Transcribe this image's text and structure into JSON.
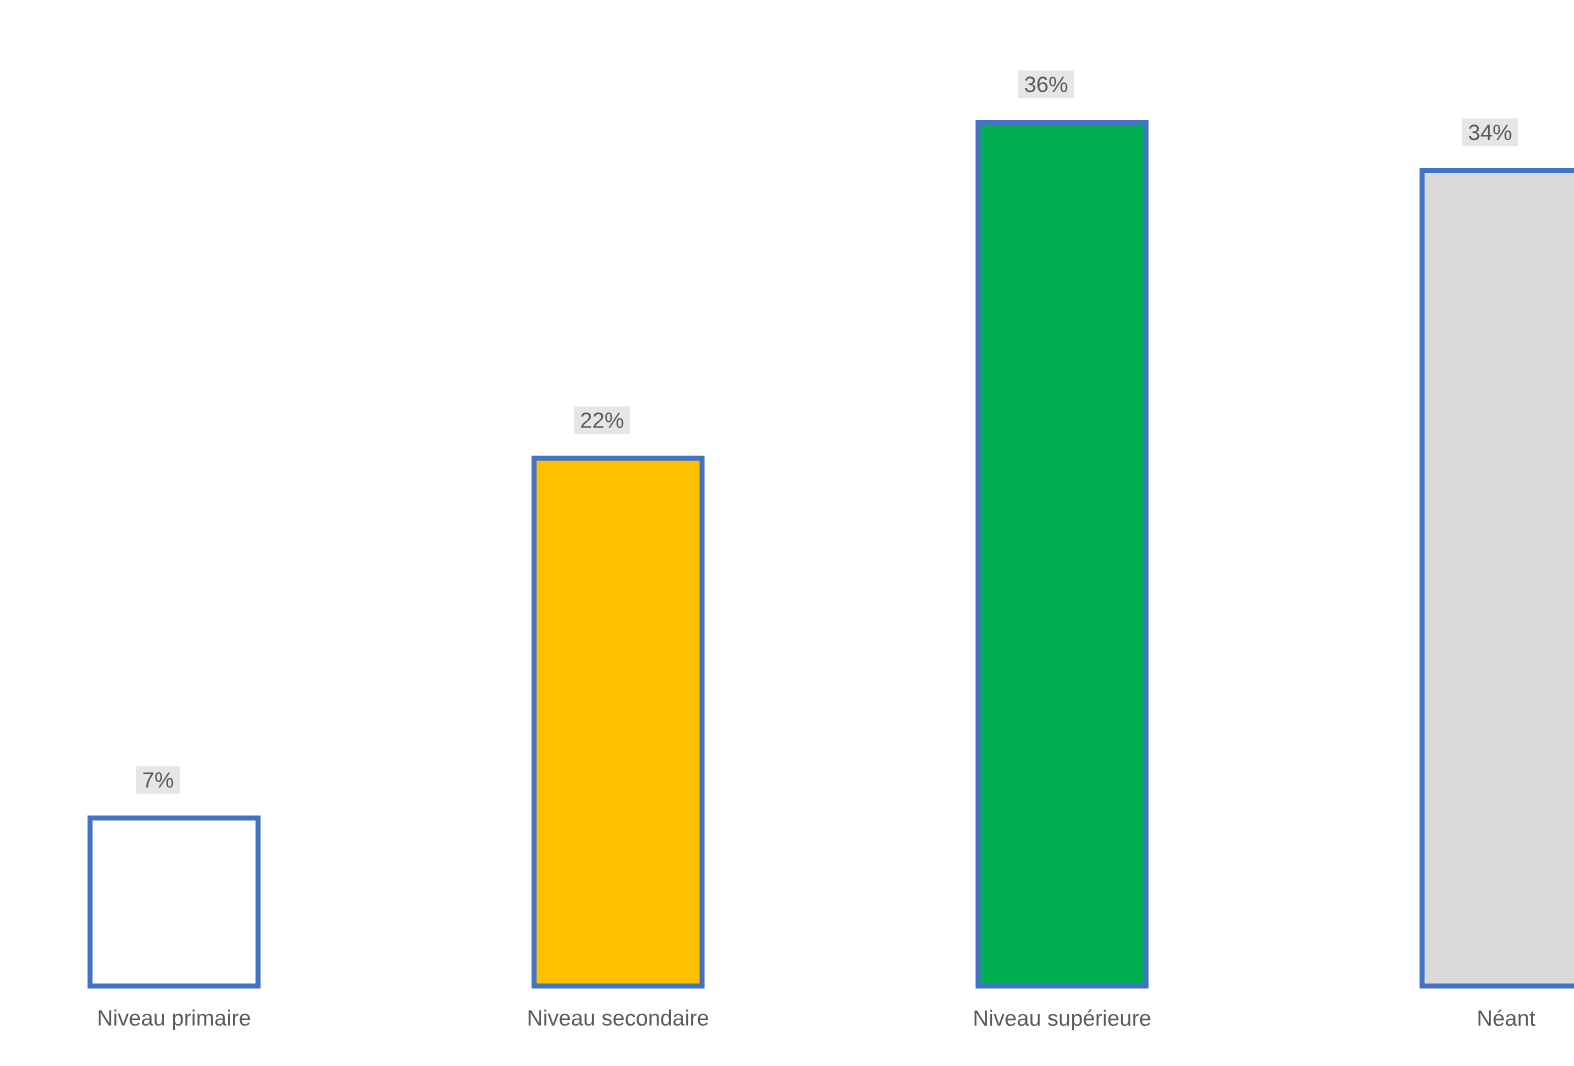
{
  "chart_data": {
    "type": "bar",
    "categories": [
      "Niveau primaire",
      "Niveau secondaire",
      "Niveau supérieure",
      "Néant"
    ],
    "values": [
      7,
      22,
      36,
      34
    ],
    "colors": [
      "#ffffff",
      "#ffc000",
      "#00b050",
      "#d9d9d9"
    ],
    "value_labels": [
      "7%",
      "22%",
      "36%",
      "34%"
    ]
  }
}
